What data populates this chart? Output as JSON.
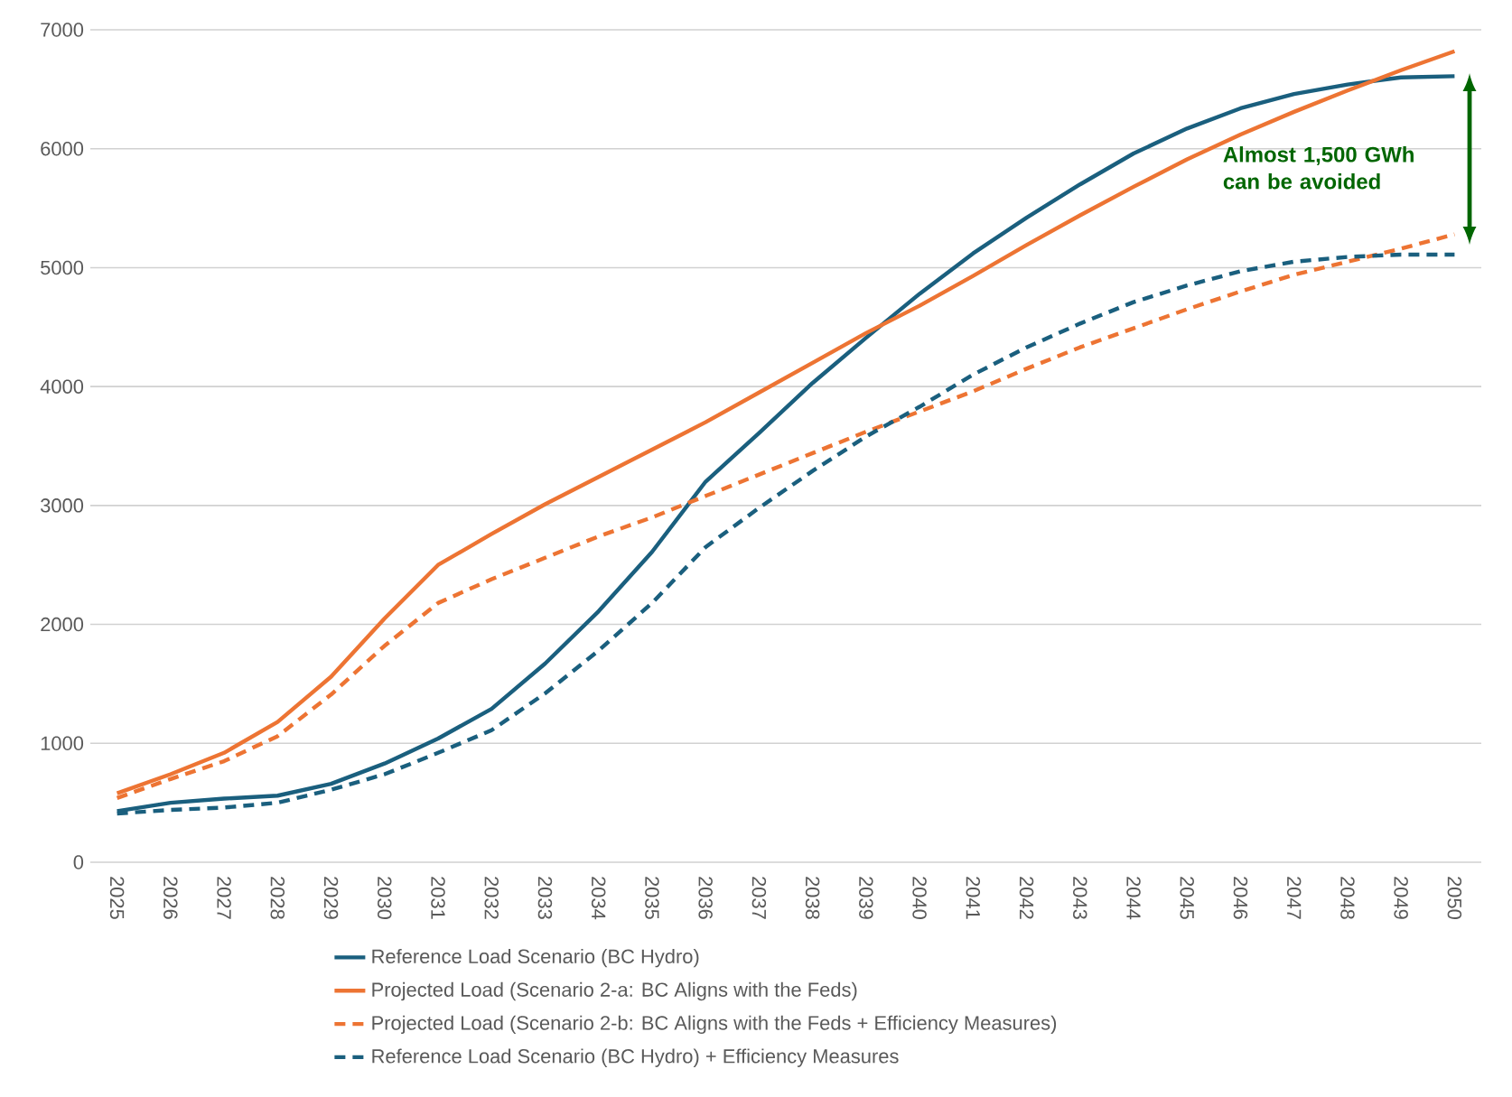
{
  "chart_data": {
    "type": "line",
    "categories": [
      "2025",
      "2026",
      "2027",
      "2028",
      "2029",
      "2030",
      "2031",
      "2032",
      "2033",
      "2034",
      "2035",
      "2036",
      "2037",
      "2038",
      "2039",
      "2040",
      "2041",
      "2042",
      "2043",
      "2044",
      "2045",
      "2046",
      "2047",
      "2048",
      "2049",
      "2050"
    ],
    "series": [
      {
        "name": "Reference Load Scenario (BC Hydro)",
        "color": "#1a5f7e",
        "line_style": "solid",
        "values": [
          430,
          500,
          535,
          560,
          660,
          830,
          1040,
          1290,
          1670,
          2110,
          2610,
          3200,
          3610,
          4030,
          4410,
          4780,
          5120,
          5420,
          5700,
          5960,
          6170,
          6340,
          6460,
          6540,
          6600,
          6610
        ]
      },
      {
        "name": "Projected Load (Scenario 2-a: BC Aligns with the Feds)",
        "color": "#ed7433",
        "line_style": "solid",
        "values": [
          580,
          740,
          920,
          1180,
          1560,
          2050,
          2500,
          2760,
          3010,
          3240,
          3470,
          3700,
          3950,
          4200,
          4450,
          4680,
          4930,
          5190,
          5440,
          5680,
          5910,
          6120,
          6310,
          6490,
          6660,
          6820
        ]
      },
      {
        "name": "Projected Load (Scenario 2-b: BC Aligns with the Feds + Efficiency Measures)",
        "color": "#ed7433",
        "line_style": "dashed",
        "values": [
          540,
          700,
          850,
          1060,
          1410,
          1820,
          2180,
          2380,
          2560,
          2740,
          2900,
          3080,
          3260,
          3440,
          3620,
          3790,
          3960,
          4150,
          4330,
          4490,
          4650,
          4800,
          4940,
          5050,
          5160,
          5280
        ]
      },
      {
        "name": "Reference Load Scenario (BC Hydro) + Efficiency Measures",
        "color": "#1a5f7e",
        "line_style": "dashed",
        "values": [
          410,
          440,
          460,
          500,
          610,
          740,
          920,
          1110,
          1420,
          1780,
          2180,
          2650,
          2980,
          3290,
          3580,
          3830,
          4100,
          4330,
          4530,
          4710,
          4850,
          4970,
          5050,
          5090,
          5110,
          5110
        ]
      }
    ],
    "ylim": [
      0,
      7000
    ],
    "yticks": [
      0,
      1000,
      2000,
      3000,
      4000,
      5000,
      6000,
      7000
    ],
    "grid": "y",
    "legend": "bottom",
    "marker": "none",
    "annotations": [
      "Almost 1,500 GWh can be avoided"
    ]
  }
}
